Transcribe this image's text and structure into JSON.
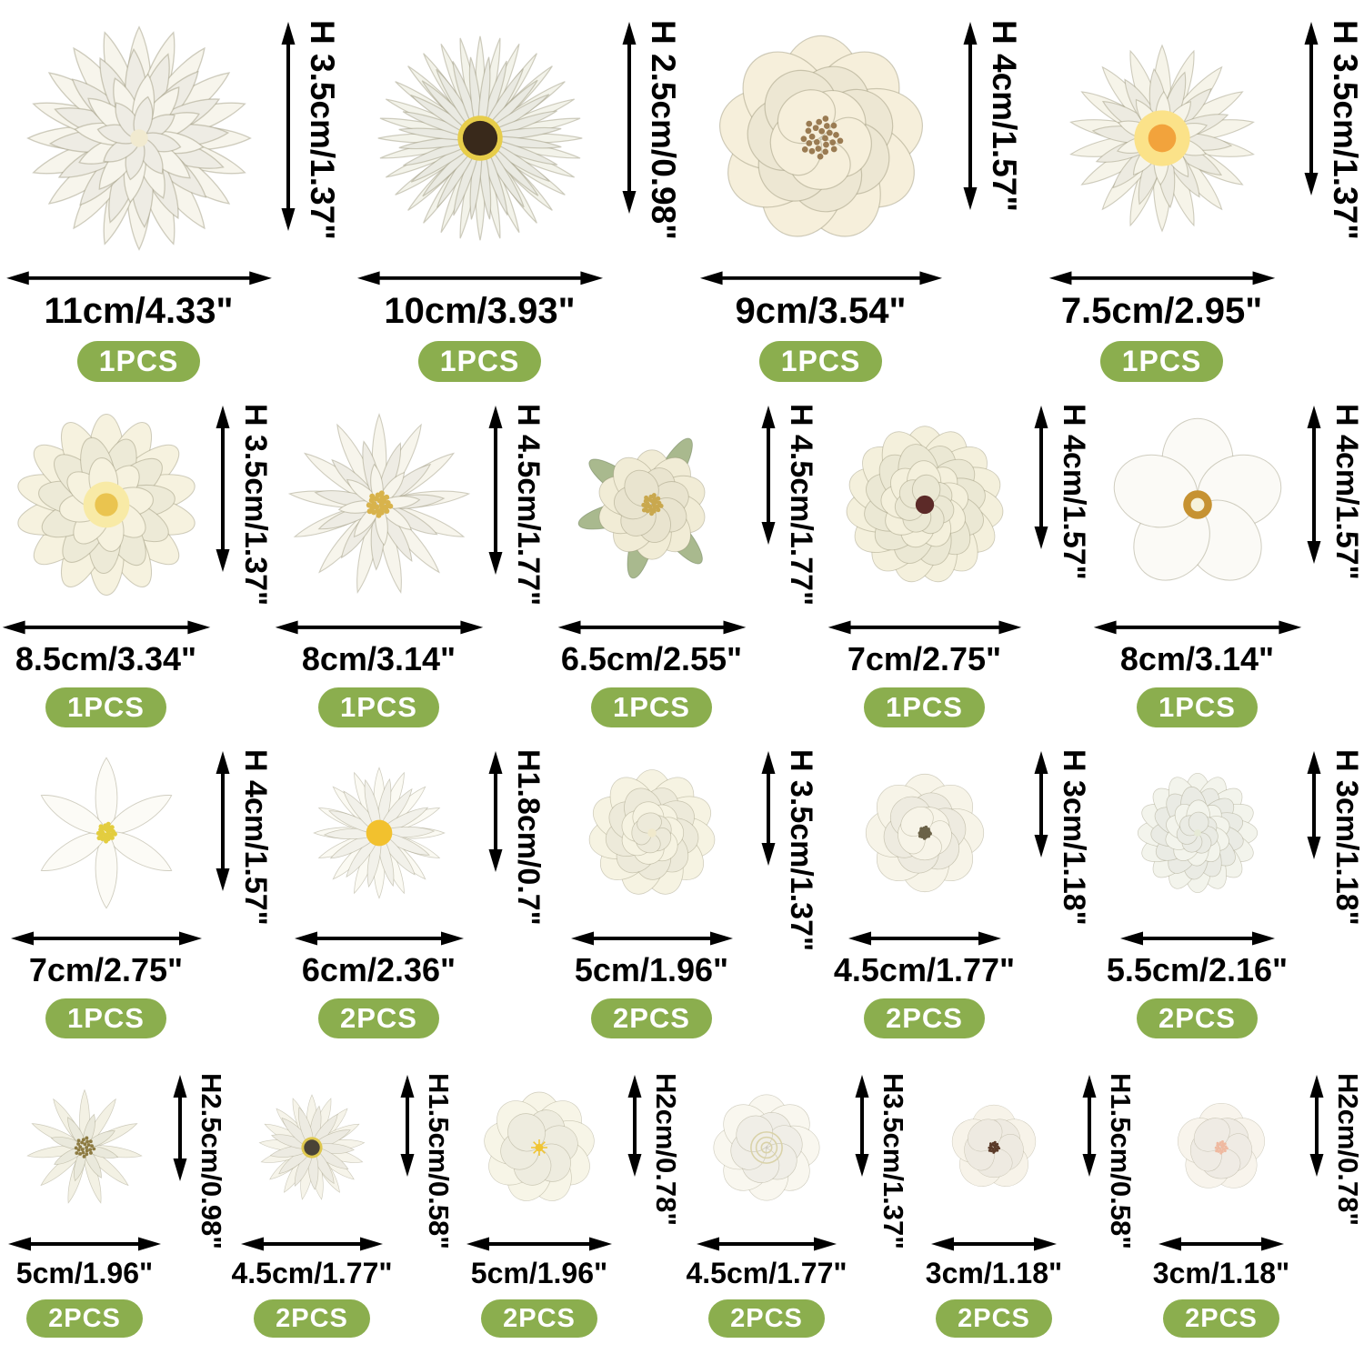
{
  "page": {
    "background": "#ffffff",
    "text_color": "#000000",
    "badge_color": "#8bae4e",
    "badge_text_color": "#ffffff"
  },
  "rows": [
    {
      "items": [
        {
          "flower": "dahlia",
          "width_label": "11cm/4.33\"",
          "height_label": "H 3.5cm/1.37\"",
          "qty_label": "1PCS",
          "petal_color": "#f7f5ec",
          "center_color": "#f1ead0"
        },
        {
          "flower": "gerbera-daisy",
          "width_label": "10cm/3.93\"",
          "height_label": "H 2.5cm/0.98\"",
          "qty_label": "1PCS",
          "petal_color": "#f3f3ea",
          "center_color": "#39291b",
          "ring_color": "#e7cd4a"
        },
        {
          "flower": "peony",
          "width_label": "9cm/3.54\"",
          "height_label": "H 4cm/1.57\"",
          "qty_label": "1PCS",
          "petal_color": "#f6efdb",
          "center_color": "#9a7b52"
        },
        {
          "flower": "dahlia-yellow-center",
          "width_label": "7.5cm/2.95\"",
          "height_label": "H 3.5cm/1.37\"",
          "qty_label": "1PCS",
          "petal_color": "#f6f4e9",
          "center_color": "#fbe289",
          "center_color2": "#f2a33c"
        }
      ]
    },
    {
      "items": [
        {
          "flower": "dahlia-cream",
          "width_label": "8.5cm/3.34\"",
          "height_label": "H 3.5cm/1.37\"",
          "qty_label": "1PCS",
          "petal_color": "#f6f2df",
          "center_color": "#f8eaa6",
          "center_color2": "#eac44f"
        },
        {
          "flower": "spiky-dahlia",
          "width_label": "8cm/3.14\"",
          "height_label": "H 4.5cm/1.77\"",
          "qty_label": "1PCS",
          "petal_color": "#f7f5ec",
          "center_color": "#d8b34c"
        },
        {
          "flower": "peony-bud-with-leaves",
          "width_label": "6.5cm/2.55\"",
          "height_label": "H 4.5cm/1.77\"",
          "qty_label": "1PCS",
          "petal_color": "#f1ecd6",
          "center_color": "#c9a84e",
          "leaf_color": "#a9b98e"
        },
        {
          "flower": "ranunculus",
          "width_label": "7cm/2.75\"",
          "height_label": "H 4cm/1.57\"",
          "qty_label": "1PCS",
          "petal_color": "#f4f0dc",
          "center_color": "#5c2a28"
        },
        {
          "flower": "orchid",
          "width_label": "8cm/3.14\"",
          "height_label": "H 4cm/1.57\"",
          "qty_label": "1PCS",
          "petal_color": "#fbfaf6",
          "center_color": "#c69232",
          "center_color2": "#f6f2da"
        }
      ]
    },
    {
      "items": [
        {
          "flower": "lily",
          "width_label": "7cm/2.75\"",
          "height_label": "H 4cm/1.57\"",
          "qty_label": "1PCS",
          "petal_color": "#fcfbf6",
          "center_color": "#e3cd3f"
        },
        {
          "flower": "daisy",
          "width_label": "6cm/2.36\"",
          "height_label": "H1.8cm/0.7\"",
          "qty_label": "2PCS",
          "petal_color": "#fbfaf3",
          "center_color": "#f2c12e"
        },
        {
          "flower": "carnation",
          "width_label": "5cm/1.96\"",
          "height_label": "H 3.5cm/1.37\"",
          "qty_label": "2PCS",
          "petal_color": "#f6f3e2",
          "center_color": "#f0e9cc"
        },
        {
          "flower": "mini-rose",
          "width_label": "4.5cm/1.77\"",
          "height_label": "H 3cm/1.18\"",
          "qty_label": "2PCS",
          "petal_color": "#f7f4e8",
          "center_color": "#6b6248"
        },
        {
          "flower": "carnation-pompom",
          "width_label": "5.5cm/2.16\"",
          "height_label": "H 3cm/1.18\"",
          "qty_label": "2PCS",
          "petal_color": "#f3f4ec",
          "center_color": "#e6ead6"
        }
      ]
    },
    {
      "items": [
        {
          "flower": "edelweiss-daisy",
          "width_label": "5cm/1.96\"",
          "height_label": "H2.5cm/0.98\"",
          "qty_label": "2PCS",
          "petal_color": "#f3f1e4",
          "center_color": "#8d7b42"
        },
        {
          "flower": "daisy-dark-center",
          "width_label": "4.5cm/1.77\"",
          "height_label": "H1.5cm/0.58\"",
          "qty_label": "2PCS",
          "petal_color": "#f6f4ea",
          "center_color": "#4a4336",
          "ring_color": "#dfc84e"
        },
        {
          "flower": "plum-blossom",
          "width_label": "5cm/1.96\"",
          "height_label": "H2cm/0.78\"",
          "qty_label": "2PCS",
          "petal_color": "#f7f5e7",
          "center_color": "#f0c433"
        },
        {
          "flower": "rose",
          "width_label": "4.5cm/1.77\"",
          "height_label": "H3.5cm/1.37\"",
          "qty_label": "2PCS",
          "petal_color": "#f9f7ef",
          "center_color": "#d9d2a8"
        },
        {
          "flower": "cherry-blossom-brown-center",
          "width_label": "3cm/1.18\"",
          "height_label": "H1.5cm/0.58\"",
          "qty_label": "2PCS",
          "petal_color": "#f7f3e9",
          "center_color": "#5a3a28"
        },
        {
          "flower": "cherry-blossom-pink-center",
          "width_label": "3cm/1.18\"",
          "height_label": "H2cm/0.78\"",
          "qty_label": "2PCS",
          "petal_color": "#f8f4ec",
          "center_color": "#efb9a0"
        }
      ]
    }
  ]
}
